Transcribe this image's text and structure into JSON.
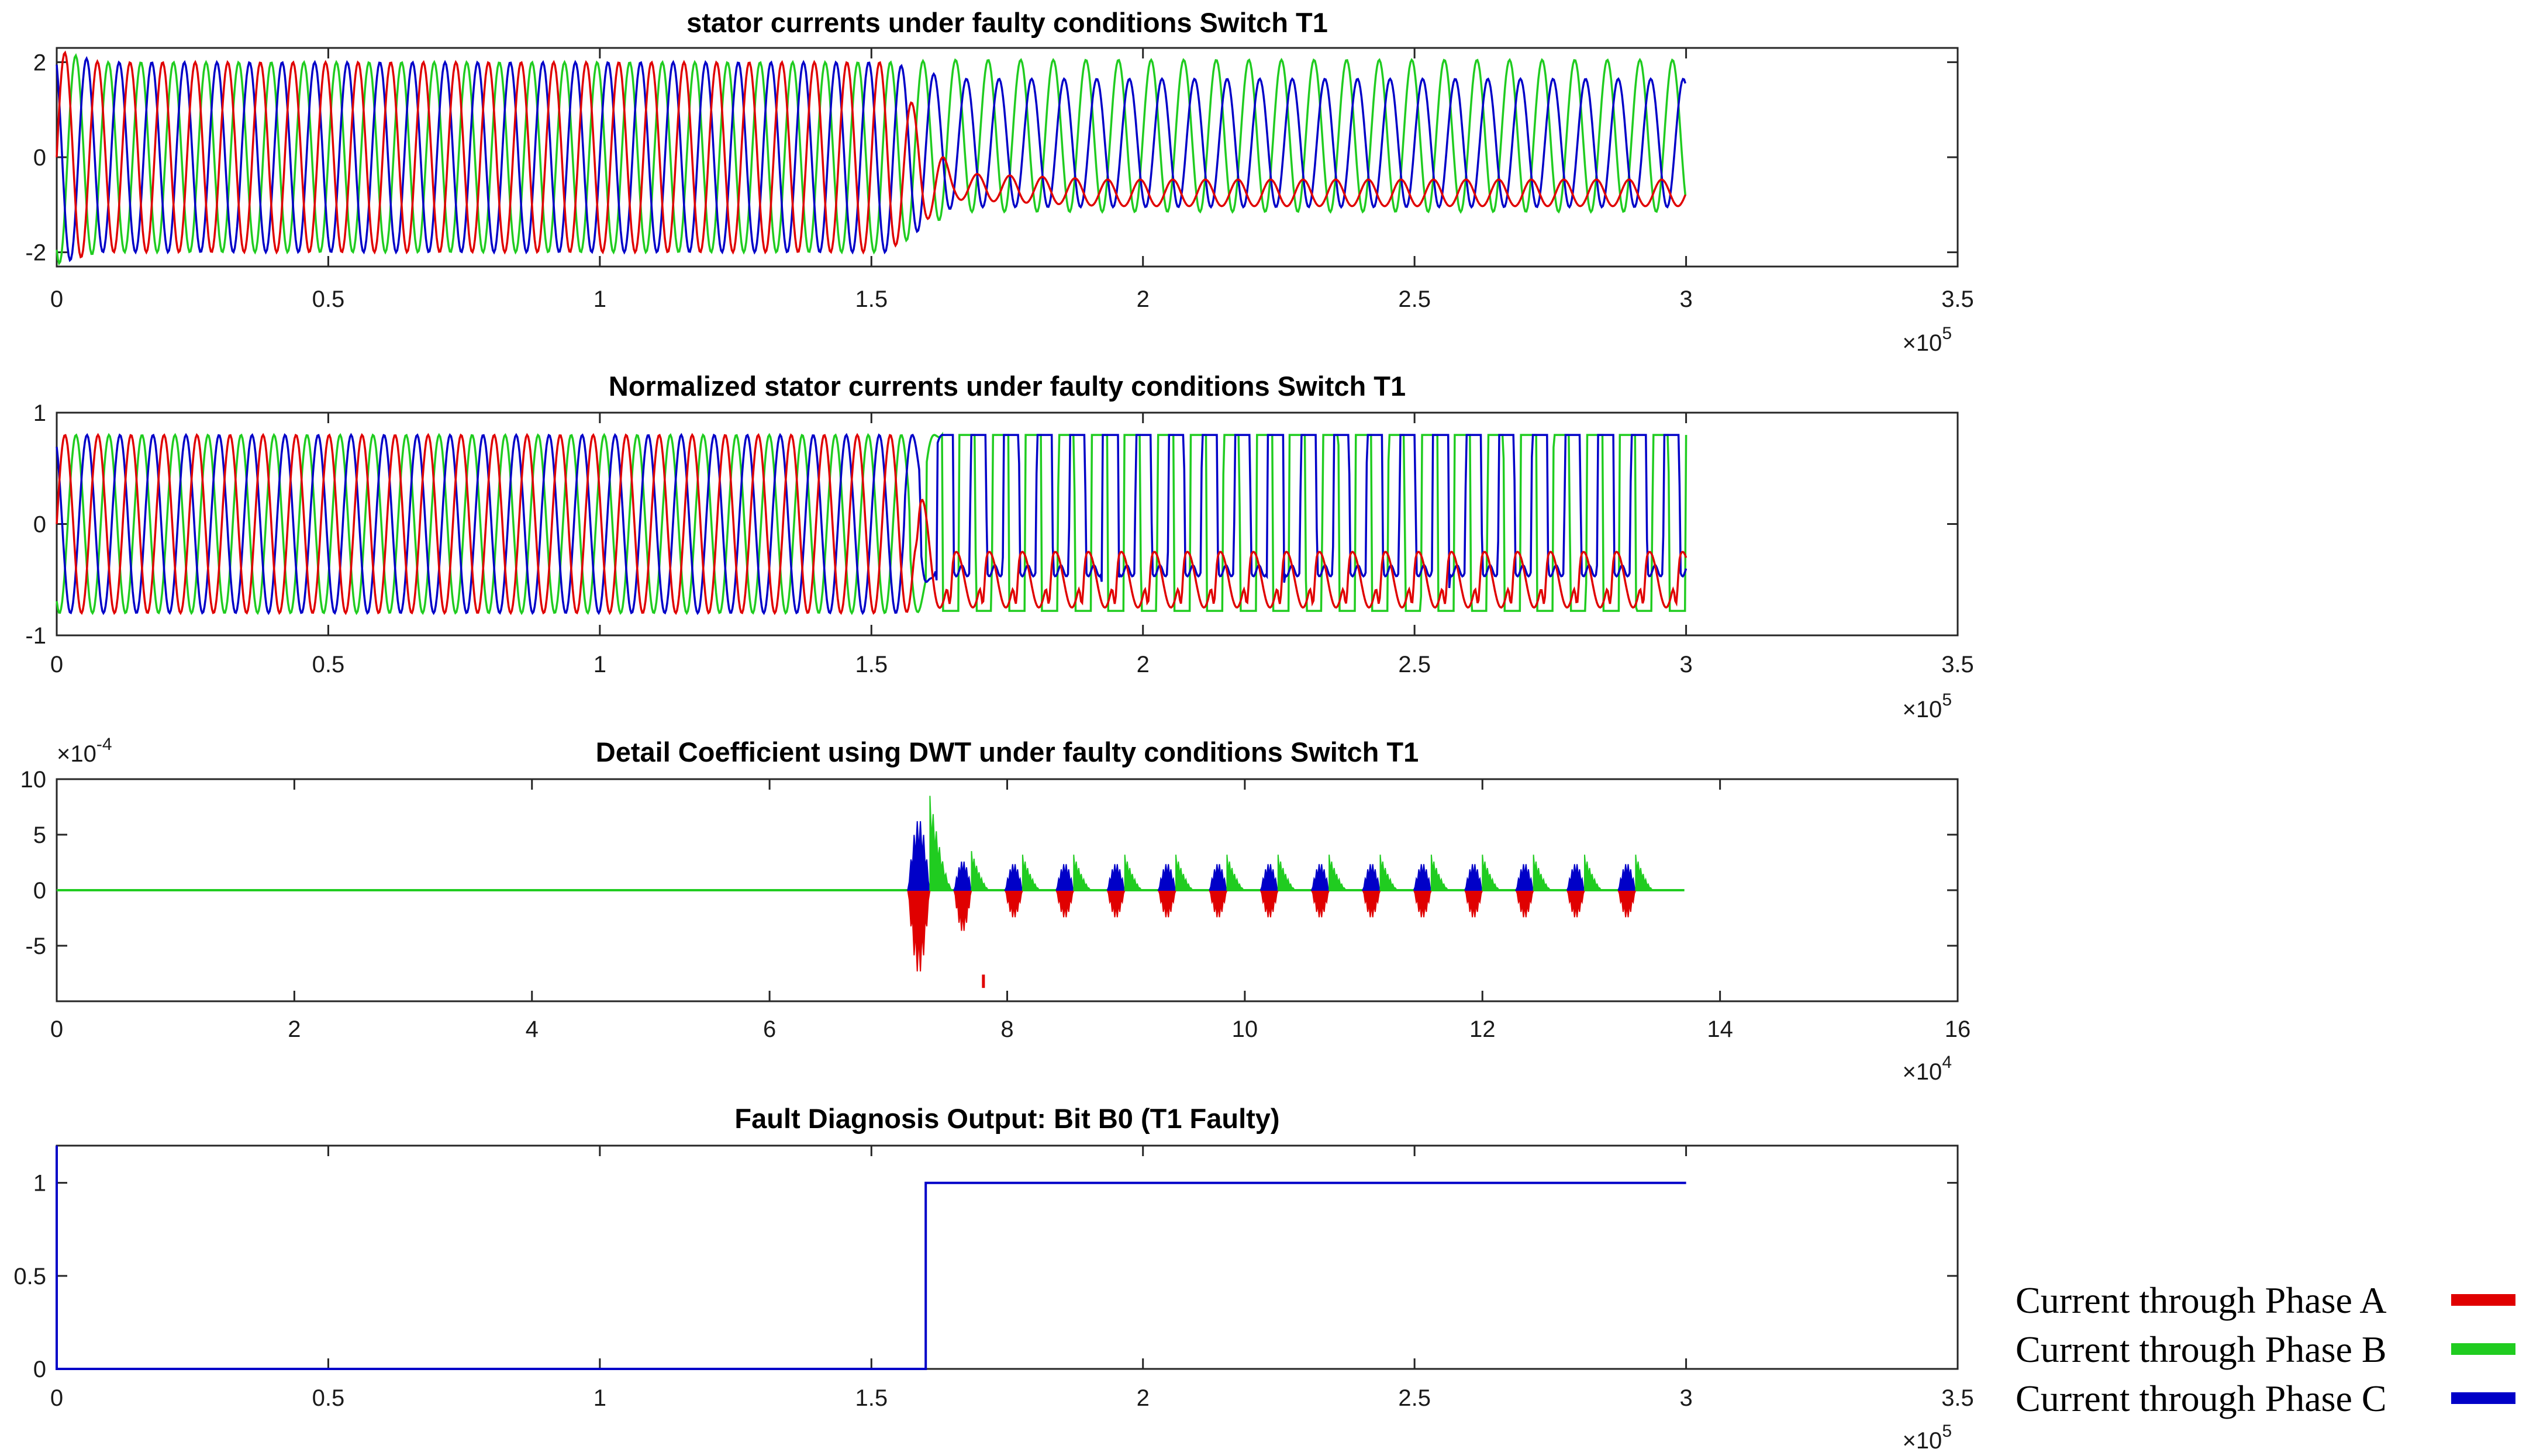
{
  "colors": {
    "phase_a": "#e00000",
    "phase_b": "#20cc20",
    "phase_c": "#0000c8",
    "output": "#0000c8"
  },
  "legend": [
    {
      "label": "Current through Phase A",
      "color": "#e00000"
    },
    {
      "label": "Current through Phase B",
      "color": "#20cc20"
    },
    {
      "label": "Current through Phase C",
      "color": "#0000c8"
    }
  ],
  "chart_data": [
    {
      "type": "line",
      "title": "stator currents under faulty conditions Switch T1",
      "xlim": [
        0,
        350000
      ],
      "ylim": [
        -2.3,
        2.3
      ],
      "x_ticks": [
        0,
        50000,
        100000,
        150000,
        200000,
        250000,
        300000,
        350000
      ],
      "x_tick_labels": [
        "0",
        "0.5",
        "1",
        "1.5",
        "2",
        "2.5",
        "3",
        "3.5"
      ],
      "y_ticks": [
        -2,
        0,
        2
      ],
      "y_tick_labels": [
        "-2",
        "0",
        "2"
      ],
      "x_multiplier": {
        "base": "×10",
        "exp": "5"
      },
      "fault_x": 153000,
      "x_end": 300000,
      "cycles": 54,
      "series": [
        {
          "name": "Phase A",
          "pre_fault_amplitude": 2,
          "post_fault": "offset -0.5, small ripple amplitude 0.3, settling to -0.7"
        },
        {
          "name": "Phase B",
          "pre_fault_amplitude": 2,
          "post_fault": "amplitude 1.6 offset 0.45"
        },
        {
          "name": "Phase C",
          "pre_fault_amplitude": 2,
          "post_fault": "amplitude 1.35 offset 0.3"
        }
      ]
    },
    {
      "type": "line",
      "title_part1": "Normalized",
      "title_part2": "stator currents under faulty conditions Switch T1",
      "xlim": [
        0,
        350000
      ],
      "ylim": [
        -1,
        1
      ],
      "x_ticks": [
        0,
        50000,
        100000,
        150000,
        200000,
        250000,
        300000,
        350000
      ],
      "x_tick_labels": [
        "0",
        "0.5",
        "1",
        "1.5",
        "2",
        "2.5",
        "3",
        "3.5"
      ],
      "y_ticks": [
        -1,
        0,
        1
      ],
      "y_tick_labels": [
        "-1",
        "0",
        "1"
      ],
      "x_multiplier": {
        "base": "×10",
        "exp": "5"
      },
      "fault_x": 155000,
      "x_end": 300000,
      "cycles": 54,
      "series": [
        {
          "name": "Phase A",
          "pre_fault_amplitude": 0.8,
          "post_fault": "spiky around -0.25 to -0.8"
        },
        {
          "name": "Phase B",
          "pre_fault_amplitude": 0.8,
          "post_fault": "square-like between -0.78 and 0.8"
        },
        {
          "name": "Phase C",
          "pre_fault_amplitude": 0.8,
          "post_fault": "square-like between -0.45 and 0.8"
        }
      ]
    },
    {
      "type": "line",
      "title": "Detail Coefficient using DWT under faulty conditions Switch T1",
      "xlim": [
        0,
        160000
      ],
      "ylim": [
        -10,
        10
      ],
      "x_ticks": [
        0,
        20000,
        40000,
        60000,
        80000,
        100000,
        120000,
        140000,
        160000
      ],
      "x_tick_labels": [
        "0",
        "2",
        "4",
        "6",
        "8",
        "10",
        "12",
        "14",
        "16"
      ],
      "y_ticks": [
        10,
        5,
        0,
        -5
      ],
      "y_tick_labels": [
        "10",
        "5",
        "0",
        "-5"
      ],
      "x_multiplier": {
        "base": "×10",
        "exp": "4"
      },
      "y_multiplier": {
        "base": "×10",
        "exp": "-4"
      },
      "burst_start": 72000,
      "burst_end": 137000,
      "first_burst": {
        "x": 73500,
        "max": 8.5,
        "min": -7.5
      },
      "repeat_bursts": {
        "start": 77000,
        "period": 4300,
        "count": 14,
        "max": 3.2,
        "min": -2.5
      },
      "series": [
        "Phase A",
        "Phase B",
        "Phase C"
      ]
    },
    {
      "type": "line",
      "title": "Fault Diagnosis Output: Bit B0 (T1 Faulty)",
      "xlim": [
        0,
        350000
      ],
      "ylim": [
        0,
        1.2
      ],
      "x_ticks": [
        0,
        50000,
        100000,
        150000,
        200000,
        250000,
        300000,
        350000
      ],
      "x_tick_labels": [
        "0",
        "0.5",
        "1",
        "1.5",
        "2",
        "2.5",
        "3",
        "3.5"
      ],
      "y_ticks": [
        0,
        0.5,
        1
      ],
      "y_tick_labels": [
        "0",
        "0.5",
        "1"
      ],
      "x_multiplier": {
        "base": "×10",
        "exp": "5"
      },
      "x": [
        0,
        160000,
        160000,
        300000
      ],
      "values": [
        0,
        0,
        1,
        1
      ]
    }
  ]
}
